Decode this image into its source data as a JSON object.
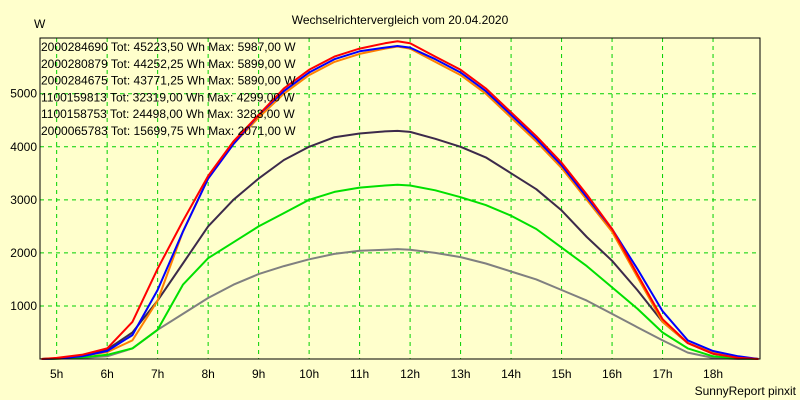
{
  "chart_data": {
    "type": "line",
    "title": "Wechselrichtervergleich vom 20.04.2020",
    "ylabel": "W",
    "xlabel": "",
    "credit": "SunnyReport pinxit",
    "xlim": [
      4.67,
      18.93
    ],
    "ylim": [
      0,
      6050
    ],
    "grid": true,
    "legend_position": "top-left",
    "x_ticks": [
      5,
      6,
      7,
      8,
      9,
      10,
      11,
      12,
      13,
      14,
      15,
      16,
      17,
      18
    ],
    "x_tick_labels": [
      "5h",
      "6h",
      "7h",
      "8h",
      "9h",
      "10h",
      "11h",
      "12h",
      "13h",
      "14h",
      "15h",
      "16h",
      "17h",
      "18h"
    ],
    "y_ticks": [
      1000,
      2000,
      3000,
      4000,
      5000
    ],
    "y_tick_labels": [
      "1000",
      "2000",
      "3000",
      "4000",
      "5000"
    ],
    "x": [
      4.7,
      5,
      5.5,
      6,
      6.5,
      7,
      7.5,
      8,
      8.5,
      9,
      9.5,
      10,
      10.5,
      11,
      11.5,
      11.75,
      12,
      12.5,
      13,
      13.5,
      14,
      14.5,
      15,
      15.5,
      16,
      16.5,
      17,
      17.5,
      18,
      18.5,
      18.9
    ],
    "series": [
      {
        "name": "2000284690",
        "legend": "2000284690 Tot: 45223,50 Wh Max: 5987,00 W",
        "color": "#ff0000",
        "values": [
          0,
          20,
          80,
          200,
          700,
          1700,
          2600,
          3450,
          4100,
          4600,
          5100,
          5450,
          5700,
          5850,
          5950,
          5987,
          5950,
          5700,
          5450,
          5100,
          4650,
          4200,
          3700,
          3100,
          2450,
          1600,
          750,
          300,
          100,
          20,
          0
        ]
      },
      {
        "name": "2000280879",
        "legend": "2000280879 Tot: 44252,25 Wh Max: 5899,00 W",
        "color": "#0000ff",
        "values": [
          0,
          10,
          50,
          150,
          450,
          1300,
          2400,
          3400,
          4050,
          4600,
          5050,
          5400,
          5650,
          5800,
          5870,
          5899,
          5870,
          5650,
          5400,
          5050,
          4600,
          4150,
          3650,
          3050,
          2450,
          1700,
          900,
          350,
          150,
          50,
          0
        ]
      },
      {
        "name": "2000284675",
        "legend": "2000284675 Tot: 43771,25 Wh Max: 5890,00 W",
        "color": "#ff8000",
        "values": [
          0,
          10,
          60,
          130,
          350,
          1100,
          2400,
          3400,
          4050,
          4550,
          5000,
          5350,
          5600,
          5750,
          5850,
          5890,
          5850,
          5600,
          5350,
          5000,
          4550,
          4100,
          3600,
          3000,
          2400,
          1550,
          700,
          300,
          120,
          30,
          0
        ]
      },
      {
        "name": "1100159813",
        "legend": "1100159813 Tot: 32319,00 Wh Max: 4299,00 W",
        "color": "#3c2a4a",
        "values": [
          0,
          10,
          60,
          180,
          500,
          1100,
          1800,
          2500,
          3000,
          3400,
          3750,
          4000,
          4180,
          4250,
          4290,
          4299,
          4280,
          4150,
          4000,
          3800,
          3500,
          3200,
          2800,
          2300,
          1850,
          1300,
          700,
          300,
          100,
          30,
          0
        ]
      },
      {
        "name": "1100158753",
        "legend": "1100158753 Tot: 24498,00 Wh Max: 3283,00 W",
        "color": "#00e000",
        "values": [
          0,
          5,
          30,
          80,
          200,
          550,
          1400,
          1900,
          2200,
          2500,
          2750,
          3000,
          3150,
          3230,
          3270,
          3283,
          3270,
          3180,
          3050,
          2900,
          2700,
          2450,
          2100,
          1750,
          1350,
          950,
          500,
          200,
          50,
          10,
          0
        ]
      },
      {
        "name": "2000065783",
        "legend": "2000065783 Tot: 15699,75 Wh Max: 2071,00 W",
        "color": "#808080",
        "values": [
          0,
          5,
          20,
          50,
          200,
          550,
          850,
          1150,
          1400,
          1600,
          1750,
          1880,
          1980,
          2040,
          2060,
          2071,
          2060,
          2000,
          1920,
          1800,
          1650,
          1500,
          1300,
          1100,
          850,
          600,
          350,
          120,
          20,
          0,
          0
        ]
      }
    ]
  }
}
